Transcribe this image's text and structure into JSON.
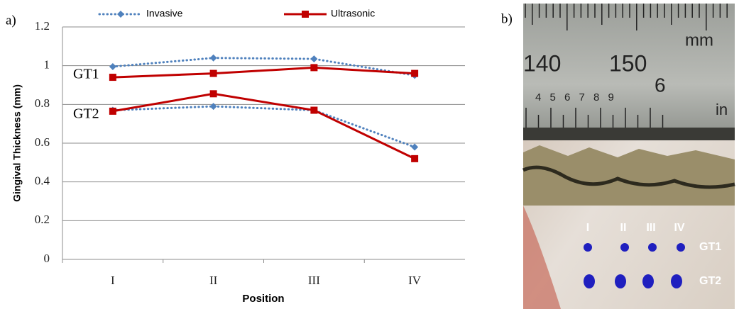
{
  "chart_data": {
    "type": "line",
    "panel_label": "a)",
    "x_label": "Position",
    "y_label": "Gingival Thickness (mm)",
    "categories": [
      "I",
      "II",
      "III",
      "IV"
    ],
    "line_labels": [
      "GT1",
      "GT2"
    ],
    "series": [
      {
        "name": "Invasive",
        "color": "#4f81bd",
        "dotted": true,
        "marker": "diamond",
        "values": [
          [
            0.995,
            1.04,
            1.035,
            0.95
          ],
          [
            0.77,
            0.79,
            0.77,
            0.58
          ]
        ]
      },
      {
        "name": "Ultrasonic",
        "color": "#c00000",
        "dotted": false,
        "marker": "square",
        "values": [
          [
            0.94,
            0.96,
            0.99,
            0.96
          ],
          [
            0.765,
            0.855,
            0.77,
            0.52
          ]
        ]
      }
    ],
    "ylim": [
      0,
      1.2
    ],
    "yticks": [
      0,
      0.2,
      0.4,
      0.6,
      0.8,
      1,
      1.2
    ],
    "grid": true
  },
  "photo": {
    "panel_label": "b)",
    "ruler_unit_top": "mm",
    "ruler_numbers": [
      "140",
      "150"
    ],
    "inch_number": "6",
    "ruler_unit_bottom": "in",
    "inch_ticks": [
      "4",
      "5",
      "6",
      "7",
      "8",
      "9"
    ],
    "sites": [
      "I",
      "II",
      "III",
      "IV"
    ],
    "rows": [
      "GT1",
      "GT2"
    ]
  }
}
